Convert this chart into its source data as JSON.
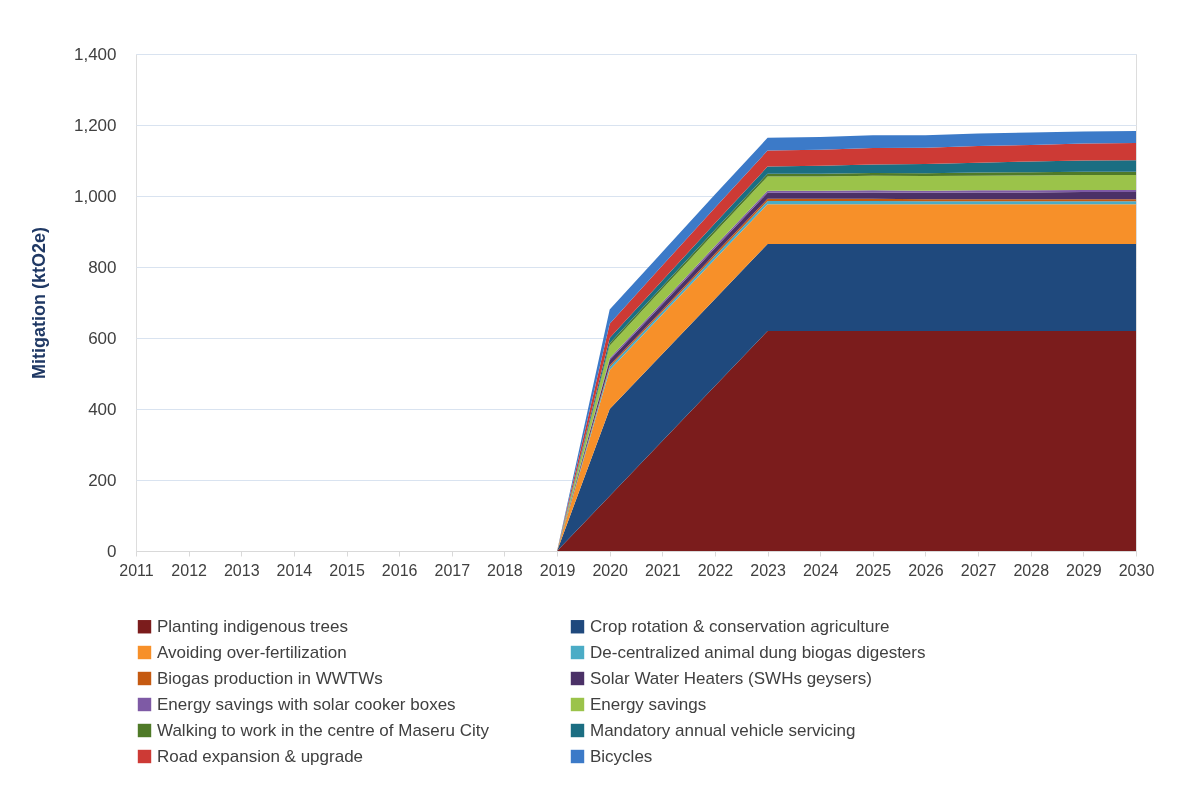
{
  "chart_data": {
    "type": "area",
    "stacked": true,
    "ylabel": "Mitigation (ktO2e)",
    "ylim": [
      0,
      1400
    ],
    "yticks": [
      0,
      200,
      400,
      600,
      800,
      {
        "value": 1000,
        "label": "1,000"
      },
      {
        "value": 1200,
        "label": "1,200"
      },
      {
        "value": 1400,
        "label": "1,400"
      }
    ],
    "grid": "y",
    "legend": "bottom",
    "categories": [
      "2011",
      "2012",
      "2013",
      "2014",
      "2015",
      "2016",
      "2017",
      "2018",
      "2019",
      "2020",
      "2021",
      "2022",
      "2023",
      "2024",
      "2025",
      "2026",
      "2027",
      "2028",
      "2029",
      "2030"
    ],
    "series": [
      {
        "name": "Planting indigenous trees",
        "color": "#7b1c1c",
        "values": [
          0,
          0,
          0,
          0,
          0,
          0,
          0,
          0,
          0,
          155,
          310,
          465,
          620,
          620,
          620,
          620,
          620,
          620,
          620,
          620
        ]
      },
      {
        "name": "Crop rotation & conservation agriculture",
        "color": "#1f497d",
        "values": [
          0,
          0,
          0,
          0,
          0,
          0,
          0,
          0,
          0,
          245,
          245,
          245,
          245,
          245,
          245,
          245,
          245,
          245,
          245,
          245
        ]
      },
      {
        "name": "Avoiding over-fertilization",
        "color": "#f79029",
        "values": [
          0,
          0,
          0,
          0,
          0,
          0,
          0,
          0,
          0,
          110,
          111,
          112,
          112,
          112,
          112,
          112,
          112,
          112,
          112,
          112
        ]
      },
      {
        "name": "De-centralized animal dung biogas digesters",
        "color": "#4bacc6",
        "values": [
          0,
          0,
          0,
          0,
          0,
          0,
          0,
          0,
          0,
          8,
          8,
          9,
          9,
          9,
          9,
          8,
          8,
          8,
          8,
          8
        ]
      },
      {
        "name": "Biogas production in WWTWs",
        "color": "#c55a11",
        "values": [
          0,
          0,
          0,
          0,
          0,
          0,
          0,
          0,
          0,
          5,
          5,
          6,
          6,
          6,
          6,
          6,
          6,
          6,
          6,
          6
        ]
      },
      {
        "name": "Solar Water Heaters (SWHs geysers)",
        "color": "#4b3167",
        "values": [
          0,
          0,
          0,
          0,
          0,
          0,
          0,
          0,
          0,
          15,
          16,
          16,
          17,
          17,
          18,
          18,
          19,
          19,
          20,
          20
        ]
      },
      {
        "name": "Energy savings with solar cooker boxes",
        "color": "#7e5aa5",
        "values": [
          0,
          0,
          0,
          0,
          0,
          0,
          0,
          0,
          0,
          5,
          6,
          6,
          6,
          6,
          6,
          6,
          6,
          6,
          6,
          6
        ]
      },
      {
        "name": "Energy savings",
        "color": "#9bc34a",
        "values": [
          0,
          0,
          0,
          0,
          0,
          0,
          0,
          0,
          0,
          35,
          37,
          38,
          40,
          40,
          41,
          41,
          41,
          42,
          42,
          42
        ]
      },
      {
        "name": "Walking to work in the centre of Maseru City",
        "color": "#4f7a28",
        "values": [
          0,
          0,
          0,
          0,
          0,
          0,
          0,
          0,
          0,
          7,
          7,
          8,
          8,
          8,
          8,
          8,
          9,
          9,
          9,
          9
        ]
      },
      {
        "name": "Mandatory annual vehicle servicing",
        "color": "#1b6e82",
        "values": [
          0,
          0,
          0,
          0,
          0,
          0,
          0,
          0,
          0,
          15,
          17,
          18,
          20,
          22,
          24,
          26,
          28,
          30,
          32,
          33
        ]
      },
      {
        "name": "Road expansion & upgrade",
        "color": "#cd3a35",
        "values": [
          0,
          0,
          0,
          0,
          0,
          0,
          0,
          0,
          0,
          40,
          42,
          44,
          45,
          45,
          46,
          46,
          47,
          47,
          48,
          48
        ]
      },
      {
        "name": "Bicycles",
        "color": "#3c7ac8",
        "values": [
          0,
          0,
          0,
          0,
          0,
          0,
          0,
          0,
          0,
          40,
          38,
          37,
          36,
          36,
          36,
          35,
          35,
          35,
          34,
          34
        ]
      }
    ]
  }
}
